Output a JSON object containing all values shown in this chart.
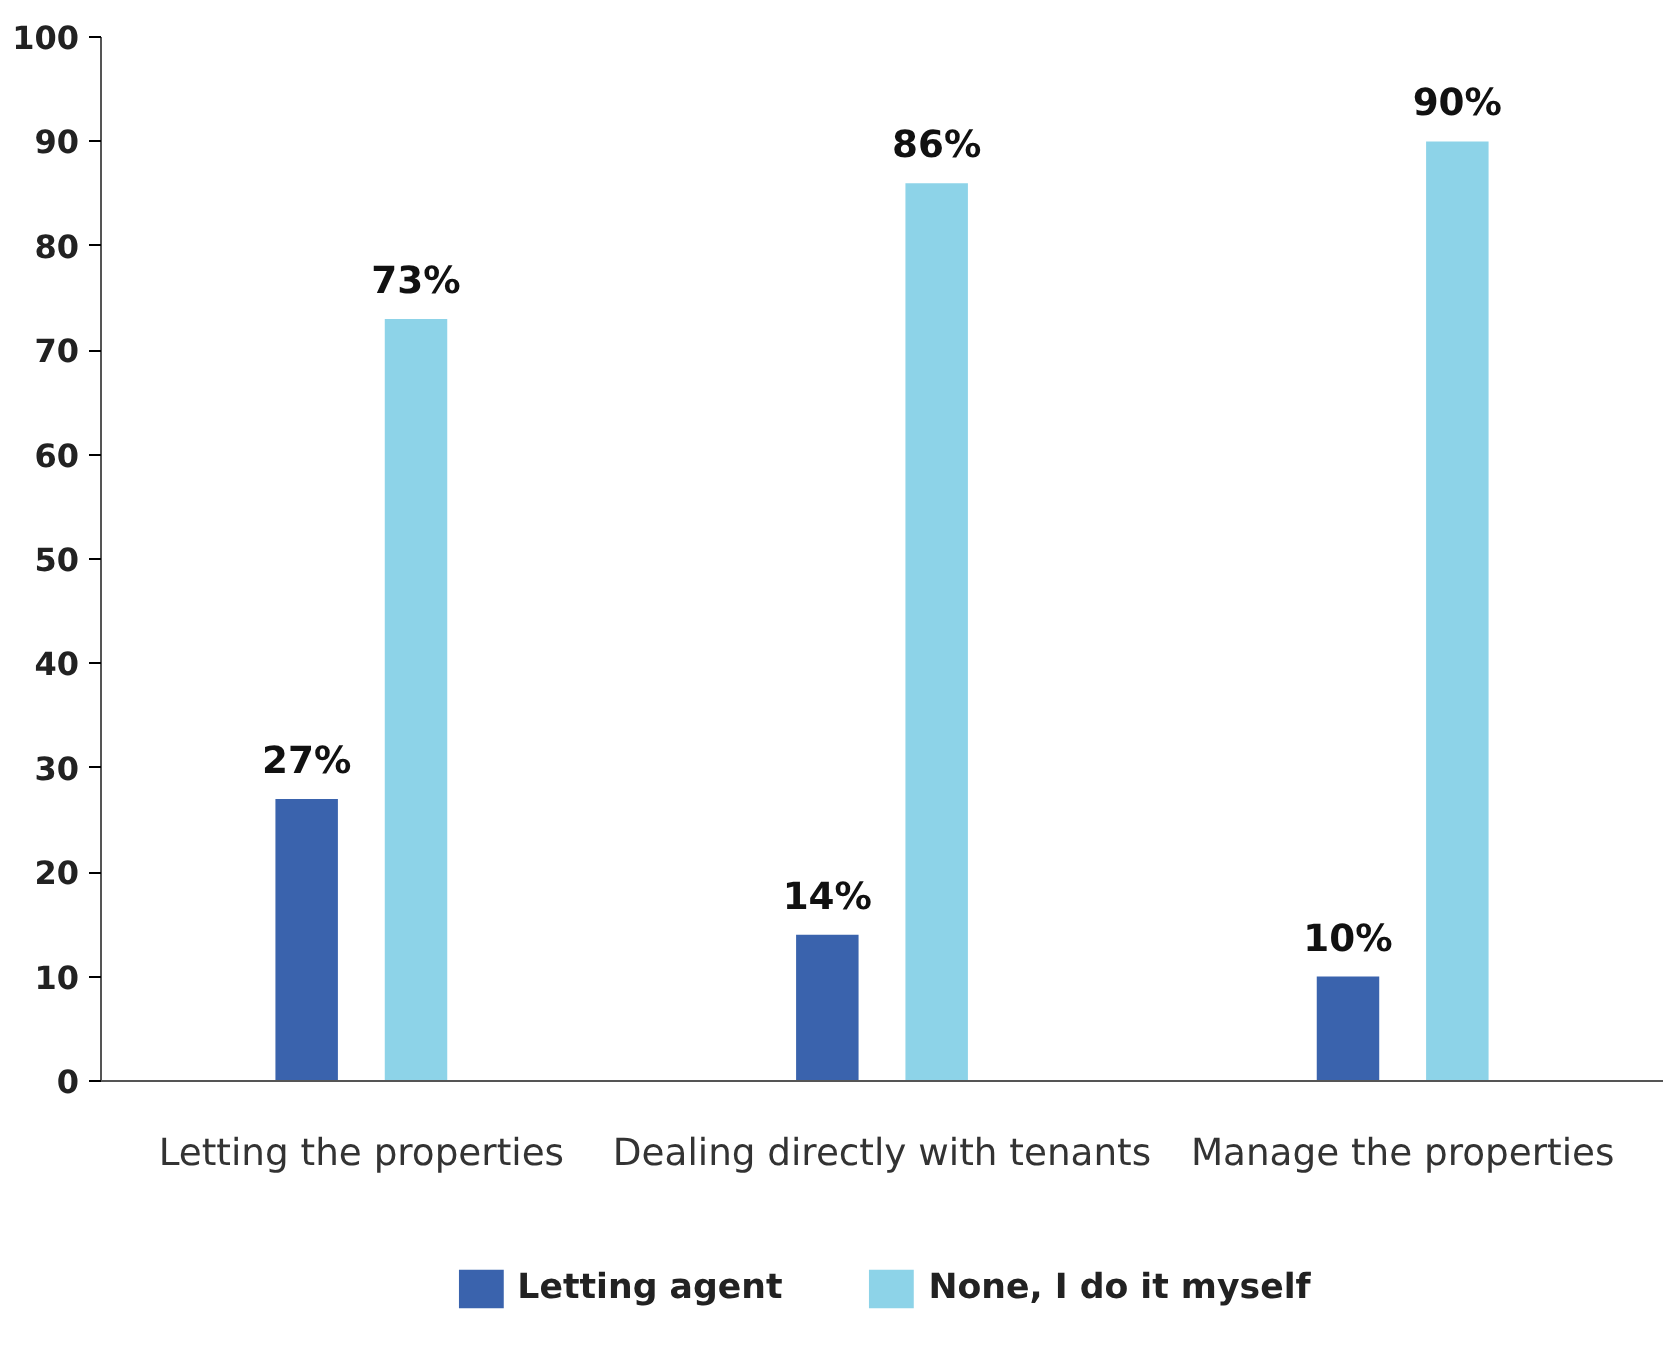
{
  "chart_data": {
    "type": "bar",
    "categories": [
      "Letting the properties",
      "Dealing directly with tenants",
      "Manage the properties"
    ],
    "series": [
      {
        "name": "Letting agent",
        "color": "#3a63ad",
        "values": [
          27,
          14,
          10
        ],
        "value_labels": [
          "27%",
          "14%",
          "10%"
        ]
      },
      {
        "name": "None, I do it myself",
        "color": "#8dd3e8",
        "values": [
          73,
          86,
          90
        ],
        "value_labels": [
          "73%",
          "86%",
          "90%"
        ]
      }
    ],
    "ylim": [
      0,
      100
    ],
    "yticks": [
      0,
      10,
      20,
      30,
      40,
      50,
      60,
      70,
      80,
      90,
      100
    ],
    "grid": false,
    "legend": "bottom"
  }
}
